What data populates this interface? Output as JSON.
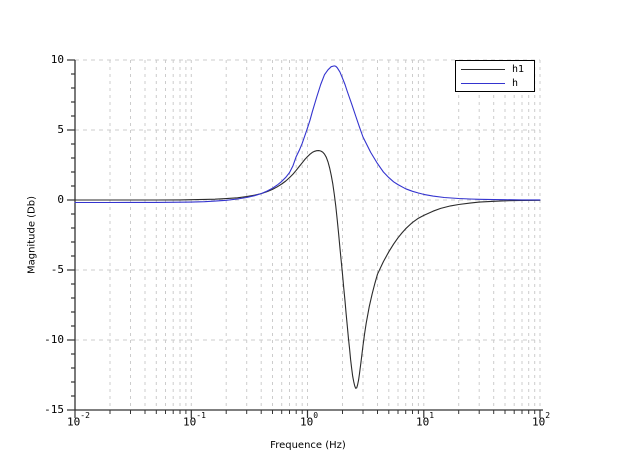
{
  "chart_data": {
    "type": "line",
    "title": "",
    "xlabel": "Frequence (Hz)",
    "ylabel": "Magnitude (Db)",
    "x_scale": "log",
    "xlim": [
      0.01,
      100
    ],
    "ylim": [
      -15,
      10
    ],
    "y_major_ticks": [
      10,
      5,
      0,
      -5,
      -10,
      -15
    ],
    "y_minor_step": 1,
    "x_major_ticks": [
      {
        "base": "10",
        "exp": "-2",
        "value": 0.01
      },
      {
        "base": "10",
        "exp": "-1",
        "value": 0.1
      },
      {
        "base": "10",
        "exp": "0",
        "value": 1
      },
      {
        "base": "10",
        "exp": "1",
        "value": 10
      },
      {
        "base": "10",
        "exp": "2",
        "value": 100
      }
    ],
    "grid": {
      "show": true,
      "style": "dashed",
      "vertical_minor": true,
      "horizontal_major_only": true
    },
    "colors": {
      "grid": "#cccccc",
      "axis": "#333333",
      "text": "#000000",
      "background": "#ffffff"
    },
    "legend": {
      "position": "top-right",
      "order": [
        "h1",
        "h"
      ]
    },
    "series": [
      {
        "name": "h1",
        "color": "#2b2b2b",
        "points": [
          [
            0.01,
            0.0
          ],
          [
            0.02,
            0.0
          ],
          [
            0.05,
            0.0
          ],
          [
            0.08,
            0.01
          ],
          [
            0.1,
            0.02
          ],
          [
            0.13,
            0.04
          ],
          [
            0.16,
            0.06
          ],
          [
            0.2,
            0.1
          ],
          [
            0.25,
            0.16
          ],
          [
            0.3,
            0.24
          ],
          [
            0.35,
            0.34
          ],
          [
            0.4,
            0.46
          ],
          [
            0.45,
            0.6
          ],
          [
            0.5,
            0.76
          ],
          [
            0.55,
            0.94
          ],
          [
            0.6,
            1.14
          ],
          [
            0.65,
            1.36
          ],
          [
            0.7,
            1.6
          ],
          [
            0.75,
            1.85
          ],
          [
            0.8,
            2.12
          ],
          [
            0.85,
            2.4
          ],
          [
            0.9,
            2.66
          ],
          [
            0.95,
            2.9
          ],
          [
            1.0,
            3.1
          ],
          [
            1.05,
            3.27
          ],
          [
            1.1,
            3.4
          ],
          [
            1.15,
            3.48
          ],
          [
            1.2,
            3.52
          ],
          [
            1.25,
            3.53
          ],
          [
            1.3,
            3.5
          ],
          [
            1.35,
            3.42
          ],
          [
            1.4,
            3.28
          ],
          [
            1.45,
            3.05
          ],
          [
            1.5,
            2.72
          ],
          [
            1.55,
            2.3
          ],
          [
            1.6,
            1.78
          ],
          [
            1.65,
            1.15
          ],
          [
            1.7,
            0.4
          ],
          [
            1.75,
            -0.45
          ],
          [
            1.8,
            -1.4
          ],
          [
            1.85,
            -2.4
          ],
          [
            1.9,
            -3.4
          ],
          [
            1.95,
            -4.35
          ],
          [
            2.0,
            -5.3
          ],
          [
            2.05,
            -6.25
          ],
          [
            2.1,
            -7.2
          ],
          [
            2.15,
            -8.1
          ],
          [
            2.2,
            -9.0
          ],
          [
            2.25,
            -9.85
          ],
          [
            2.3,
            -10.65
          ],
          [
            2.35,
            -11.4
          ],
          [
            2.4,
            -12.05
          ],
          [
            2.45,
            -12.6
          ],
          [
            2.5,
            -13.0
          ],
          [
            2.55,
            -13.3
          ],
          [
            2.6,
            -13.45
          ],
          [
            2.65,
            -13.42
          ],
          [
            2.7,
            -13.2
          ],
          [
            2.75,
            -12.85
          ],
          [
            2.8,
            -12.4
          ],
          [
            2.9,
            -11.4
          ],
          [
            3.0,
            -10.4
          ],
          [
            3.1,
            -9.55
          ],
          [
            3.2,
            -8.8
          ],
          [
            3.4,
            -7.6
          ],
          [
            3.6,
            -6.7
          ],
          [
            3.8,
            -5.95
          ],
          [
            4.0,
            -5.3
          ],
          [
            4.5,
            -4.4
          ],
          [
            5.0,
            -3.7
          ],
          [
            5.5,
            -3.15
          ],
          [
            6.0,
            -2.7
          ],
          [
            6.5,
            -2.35
          ],
          [
            7.0,
            -2.05
          ],
          [
            8.0,
            -1.6
          ],
          [
            9.0,
            -1.3
          ],
          [
            10,
            -1.1
          ],
          [
            12,
            -0.8
          ],
          [
            14,
            -0.6
          ],
          [
            17,
            -0.42
          ],
          [
            20,
            -0.32
          ],
          [
            25,
            -0.22
          ],
          [
            30,
            -0.15
          ],
          [
            40,
            -0.09
          ],
          [
            50,
            -0.06
          ],
          [
            70,
            -0.03
          ],
          [
            100,
            -0.02
          ]
        ]
      },
      {
        "name": "h",
        "color": "#3434cf",
        "points": [
          [
            0.01,
            -0.18
          ],
          [
            0.02,
            -0.18
          ],
          [
            0.05,
            -0.17
          ],
          [
            0.08,
            -0.16
          ],
          [
            0.1,
            -0.15
          ],
          [
            0.13,
            -0.12
          ],
          [
            0.16,
            -0.08
          ],
          [
            0.2,
            -0.02
          ],
          [
            0.25,
            0.07
          ],
          [
            0.3,
            0.18
          ],
          [
            0.35,
            0.31
          ],
          [
            0.4,
            0.46
          ],
          [
            0.45,
            0.64
          ],
          [
            0.5,
            0.84
          ],
          [
            0.55,
            1.07
          ],
          [
            0.6,
            1.33
          ],
          [
            0.65,
            1.62
          ],
          [
            0.7,
            1.96
          ],
          [
            0.75,
            2.45
          ],
          [
            0.8,
            3.1
          ],
          [
            0.85,
            3.55
          ],
          [
            0.9,
            4.05
          ],
          [
            0.95,
            4.6
          ],
          [
            1.0,
            5.15
          ],
          [
            1.05,
            5.7
          ],
          [
            1.1,
            6.3
          ],
          [
            1.15,
            6.85
          ],
          [
            1.2,
            7.35
          ],
          [
            1.3,
            8.25
          ],
          [
            1.4,
            8.95
          ],
          [
            1.5,
            9.3
          ],
          [
            1.6,
            9.52
          ],
          [
            1.7,
            9.58
          ],
          [
            1.75,
            9.55
          ],
          [
            1.8,
            9.45
          ],
          [
            1.9,
            9.15
          ],
          [
            2.0,
            8.7
          ],
          [
            2.1,
            8.25
          ],
          [
            2.2,
            7.75
          ],
          [
            2.4,
            6.85
          ],
          [
            2.6,
            6.0
          ],
          [
            2.8,
            5.2
          ],
          [
            3.0,
            4.5
          ],
          [
            3.5,
            3.4
          ],
          [
            4.0,
            2.6
          ],
          [
            4.5,
            2.0
          ],
          [
            5.0,
            1.6
          ],
          [
            5.5,
            1.3
          ],
          [
            6.0,
            1.1
          ],
          [
            7.0,
            0.8
          ],
          [
            8.0,
            0.62
          ],
          [
            9.0,
            0.5
          ],
          [
            10,
            0.4
          ],
          [
            12,
            0.28
          ],
          [
            15,
            0.18
          ],
          [
            20,
            0.11
          ],
          [
            25,
            0.07
          ],
          [
            30,
            0.05
          ],
          [
            40,
            0.03
          ],
          [
            50,
            0.02
          ],
          [
            70,
            0.01
          ],
          [
            100,
            0.01
          ]
        ]
      }
    ]
  }
}
